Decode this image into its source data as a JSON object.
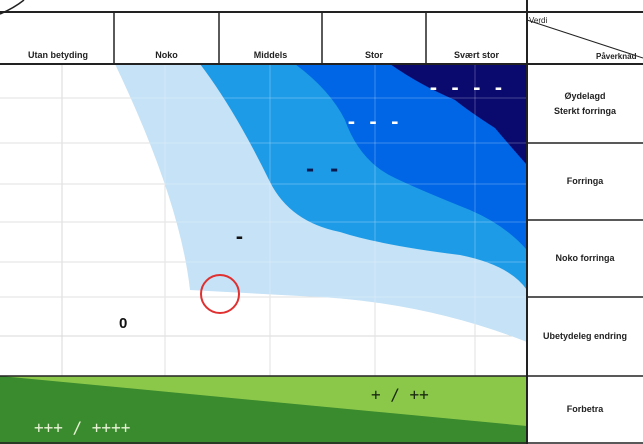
{
  "corner": {
    "top_label": "Verdi",
    "bottom_label": "Påverknad"
  },
  "columns": [
    {
      "label": "Utan betyding"
    },
    {
      "label": "Noko"
    },
    {
      "label": "Middels"
    },
    {
      "label": "Stor"
    },
    {
      "label": "Svært stor"
    }
  ],
  "rows": [
    {
      "lines": [
        "Øydelagd",
        "Sterkt forringa"
      ]
    },
    {
      "lines": [
        "Forringa"
      ]
    },
    {
      "lines": [
        "Noko forringa"
      ]
    },
    {
      "lines": [
        "Ubetydeleg endring"
      ]
    },
    {
      "lines": [
        "Forbetra"
      ]
    }
  ],
  "zone_symbols": {
    "very_large_negative": "- - - -",
    "large_negative": "- - -",
    "medium_negative": "- -",
    "small_negative": "-",
    "neutral": "0",
    "positive": "+ / ++",
    "large_positive": "+++ / ++++"
  },
  "colors": {
    "light_blue": "#c5e2f6",
    "mid_blue": "#1e9be7",
    "blue": "#0066e6",
    "dark_navy": "#0a0a6e",
    "light_green": "#8bc84a",
    "dark_green": "#3a8a2e",
    "grid": "#d9d9d9",
    "marker": "#e03030"
  }
}
